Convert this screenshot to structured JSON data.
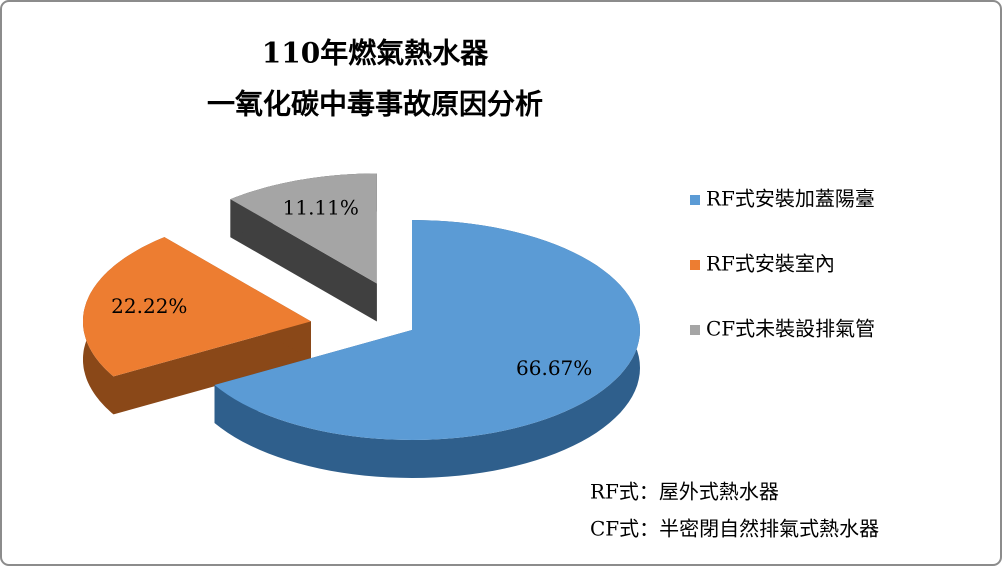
{
  "chart_data": {
    "type": "pie3d",
    "title": [
      "110年燃氣熱水器",
      "一氧化碳中毒事故原因分析"
    ],
    "categories": [
      "RF式安裝加蓋陽臺",
      "RF式安裝室內",
      "CF式未裝設排氣管"
    ],
    "values": [
      66.67,
      22.22,
      11.11
    ],
    "value_labels": [
      "66.67%",
      "22.22%",
      "11.11%"
    ],
    "colors": [
      "#5b9bd5",
      "#ed7d31",
      "#a5a5a5"
    ],
    "side_colors": [
      "#2f5f8c",
      "#8a4818",
      "#404040"
    ],
    "exploded": [
      false,
      true,
      true
    ],
    "legend": "right",
    "annotations": [
      "RF式：屋外式熱水器",
      "CF式：半密閉自然排氣式熱水器"
    ]
  }
}
